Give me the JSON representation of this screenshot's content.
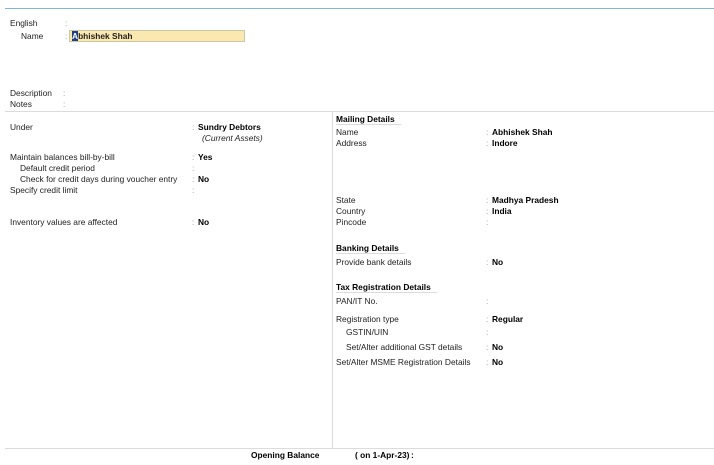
{
  "header": {
    "english_label": "English",
    "name_label": "Name",
    "name_value_first": "A",
    "name_value_rest": "bhishek Shah",
    "description_label": "Description",
    "notes_label": "Notes"
  },
  "left": [
    {
      "label": "Under",
      "value": "Sundry Debtors",
      "sub": "(Current Assets)"
    },
    {
      "label": "Maintain balances bill-by-bill",
      "value": "Yes"
    },
    {
      "label": "Default credit period",
      "value": ""
    },
    {
      "label": "Check for credit days during voucher entry",
      "value": "No"
    },
    {
      "label": "Specify credit limit",
      "value": ""
    },
    {
      "label": "Inventory values are affected",
      "value": "No"
    }
  ],
  "right": {
    "mailing_title": "Mailing Details",
    "banking_title": "Banking Details",
    "tax_title": "Tax Registration Details",
    "rows": [
      {
        "label": "Name",
        "value": "Abhishek Shah"
      },
      {
        "label": "Address",
        "value": "Indore"
      },
      {
        "label": "State",
        "value": "Madhya Pradesh"
      },
      {
        "label": "Country",
        "value": "India"
      },
      {
        "label": "Pincode",
        "value": ""
      },
      {
        "label": "Provide bank details",
        "value": "No"
      },
      {
        "label": "PAN/IT No.",
        "value": ""
      },
      {
        "label": "Registration type",
        "value": "Regular"
      },
      {
        "label": "GSTIN/UIN",
        "value": ""
      },
      {
        "label": "Set/Alter additional GST details",
        "value": "No"
      },
      {
        "label": "Set/Alter MSME Registration Details",
        "value": "No"
      }
    ]
  },
  "footer": {
    "opening_balance_label": "Opening Balance",
    "opening_balance_date": "( on 1-Apr-23)",
    "colon": ":"
  },
  "colon": ":"
}
